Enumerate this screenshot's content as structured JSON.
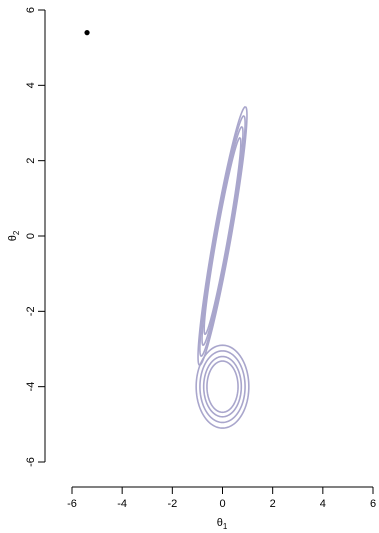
{
  "chart_data": {
    "type": "contour",
    "title": "",
    "xlabel": "θ",
    "xlabel_subscript": "1",
    "ylabel": "θ",
    "ylabel_subscript": "2",
    "xlim": [
      -6,
      6
    ],
    "ylim": [
      -6,
      6
    ],
    "xticks": [
      -6,
      -4,
      -2,
      0,
      2,
      4,
      6
    ],
    "yticks": [
      -6,
      -4,
      -2,
      0,
      2,
      4,
      6
    ],
    "grid": false,
    "contour_color": "#a9a6cc",
    "point_color": "#000000",
    "point": {
      "x": -5.4,
      "y": 5.4
    },
    "distributions": [
      {
        "name": "elongated",
        "center": [
          0,
          0
        ],
        "angle_deg": 75,
        "levels": [
          {
            "a": 3.55,
            "b": 0.34
          },
          {
            "a": 3.3,
            "b": 0.3
          },
          {
            "a": 3.0,
            "b": 0.26
          },
          {
            "a": 2.7,
            "b": 0.22
          }
        ]
      },
      {
        "name": "round",
        "center": [
          0,
          -4
        ],
        "angle_deg": 90,
        "levels": [
          {
            "a": 1.1,
            "b": 1.05
          },
          {
            "a": 0.95,
            "b": 0.9
          },
          {
            "a": 0.8,
            "b": 0.75
          },
          {
            "a": 0.68,
            "b": 0.62
          }
        ]
      }
    ]
  }
}
